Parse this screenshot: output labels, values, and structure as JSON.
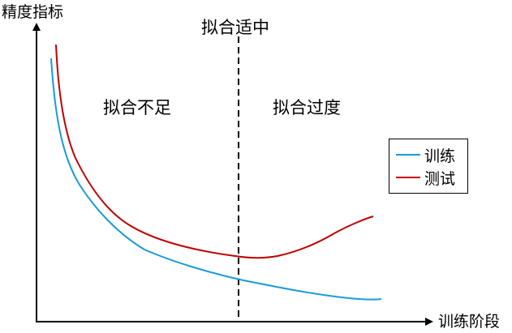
{
  "axes": {
    "y_label": "精度指标",
    "x_label": "训练阶段"
  },
  "regions": {
    "fit": "拟合适中",
    "underfit": "拟合不足",
    "overfit": "拟合过度"
  },
  "legend": [
    {
      "label": "训练",
      "color": "#1a9bd7"
    },
    {
      "label": "测试",
      "color": "#c00000"
    }
  ],
  "colors": {
    "axis": "#000000",
    "divider": "#000000"
  }
}
